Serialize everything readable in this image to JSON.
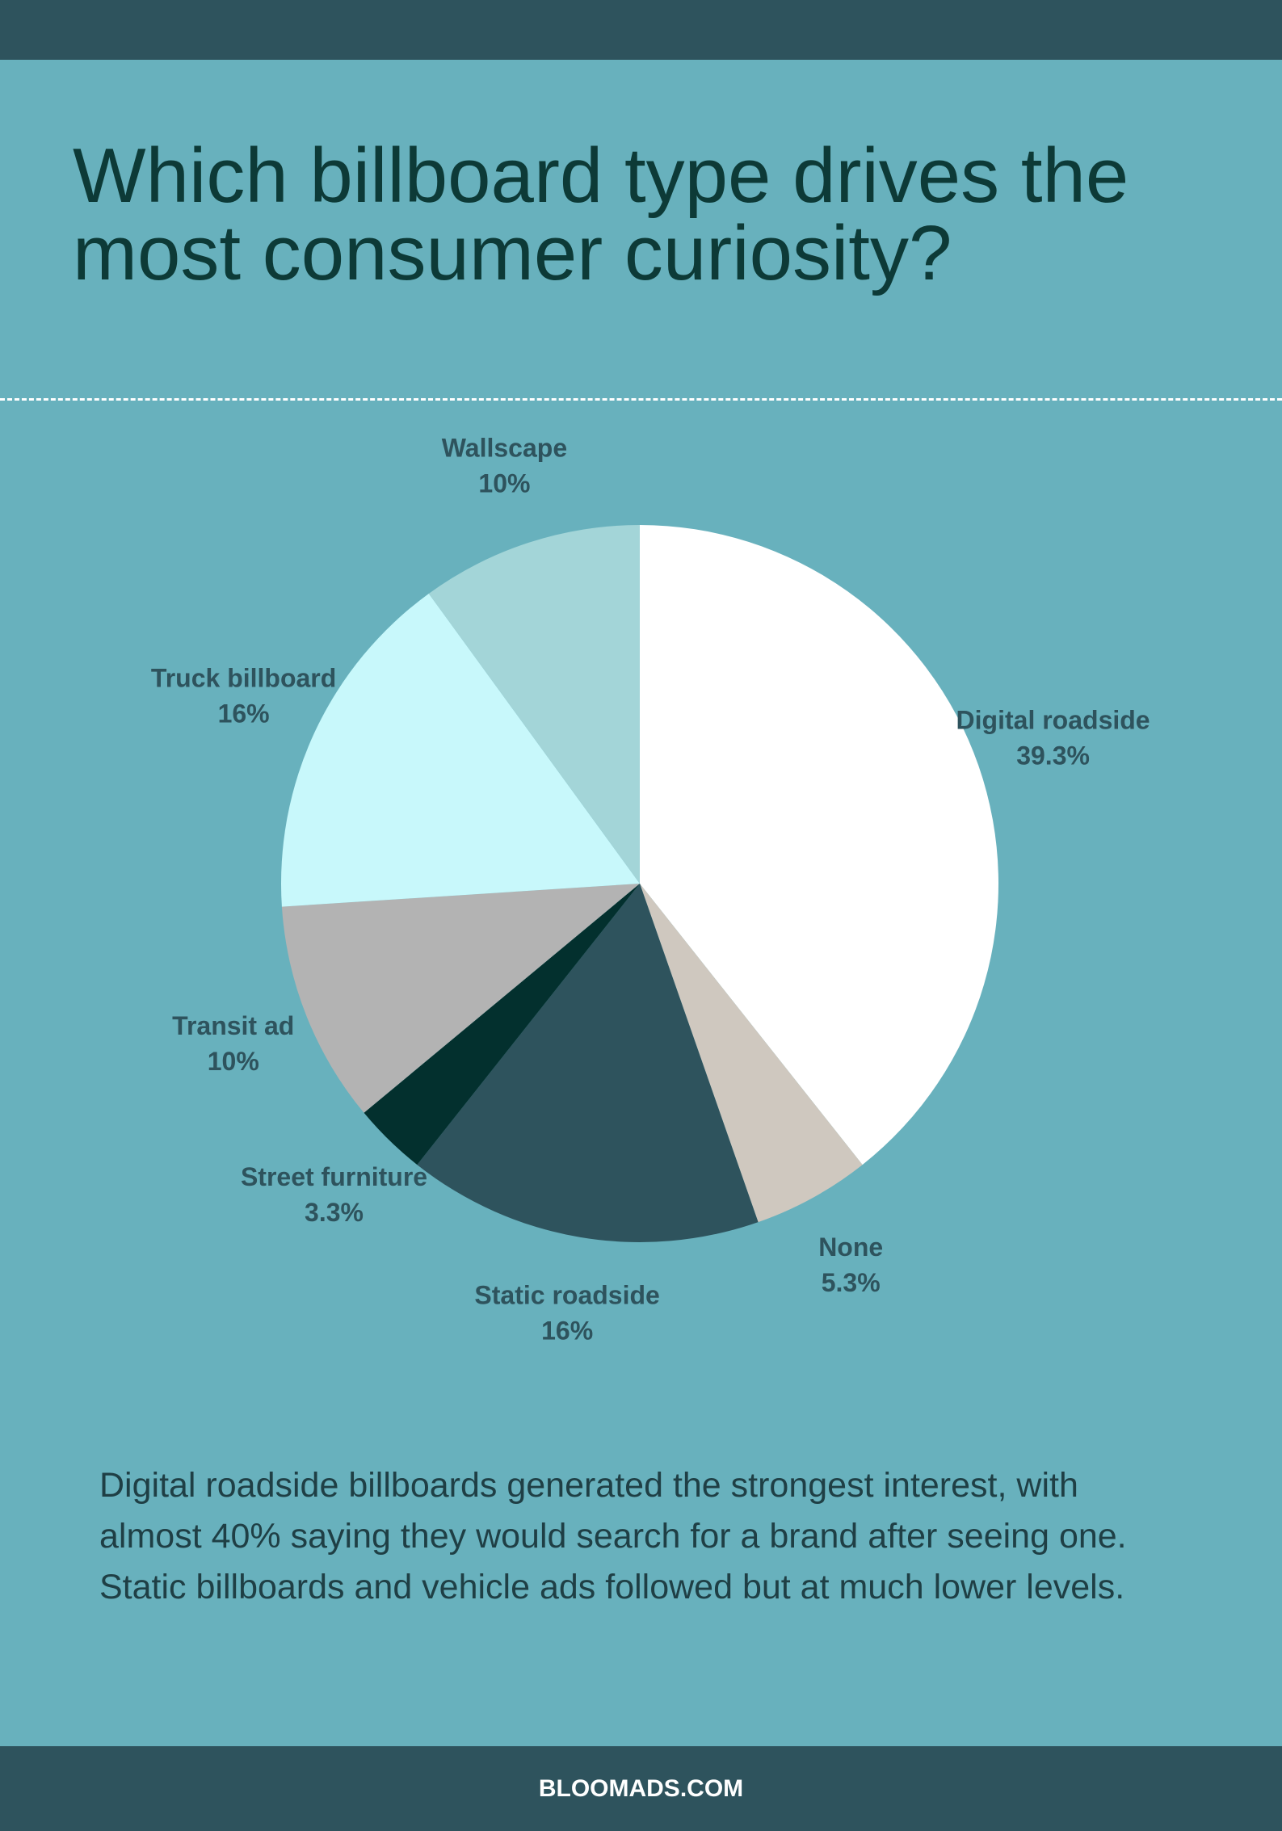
{
  "chart_data": {
    "type": "pie",
    "title": "Which billboard type drives the most consumer curiosity?",
    "categories": [
      "Digital roadside",
      "None",
      "Static roadside",
      "Street furniture",
      "Transit ad",
      "Truck billboard",
      "Wallscape"
    ],
    "values": [
      39.3,
      5.3,
      16,
      3.3,
      10,
      16,
      10
    ],
    "value_labels": [
      "39.3%",
      "5.3%",
      "16%",
      "3.3%",
      "10%",
      "16%",
      "10%"
    ],
    "colors": [
      "#ffffff",
      "#cfc8bf",
      "#2e535d",
      "#03302e",
      "#b3b3b3",
      "#c8f8fb",
      "#a3d5d8"
    ],
    "description": "Digital roadside billboards generated the strongest interest, with almost 40% saying they would search for a brand after seeing one. Static billboards and vehicle ads followed but at much lower levels."
  },
  "footer": "BLOOMADS.COM"
}
